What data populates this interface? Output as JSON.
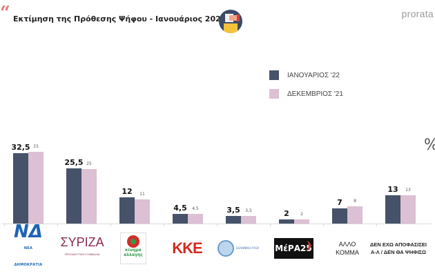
{
  "header": {
    "title": "Εκτίμηση της Πρόθεσης Ψήφου - Ιανουάριος 2022",
    "brand": "prorata",
    "icon": "ballot-vote-icon",
    "quote_mark": "“"
  },
  "legend": {
    "items": [
      {
        "label": "ΙΑΝΟΥΑΡΙΟΣ '22",
        "color": "#455269"
      },
      {
        "label": "ΔΕΚΕΜΒΡΙΟΣ '21",
        "color": "#dcc0d3"
      }
    ]
  },
  "unit_symbol": "%",
  "parties": [
    {
      "logo_text": "ΝΔ",
      "logo_sub": "ΝΕΑ ΔΗΜΟΚΡΑΤΙΑ",
      "jan_label": "32,5",
      "dec_label": "33"
    },
    {
      "logo_text": "ΣΥΡΙΖΑ",
      "logo_sub": "ΠΡΟΟΔΕΥΤΙΚΗ ΣΥΜΜΑΧΙΑ",
      "jan_label": "25,5",
      "dec_label": "25"
    },
    {
      "logo_text": "κίνημα αλλαγής",
      "logo_sub": "",
      "jan_label": "12",
      "dec_label": "11"
    },
    {
      "logo_text": "ΚΚΕ",
      "logo_sub": "",
      "jan_label": "4,5",
      "dec_label": "4,5"
    },
    {
      "logo_text": "ΕΛΛΗΝΙΚΗ ΛΥΣΗ",
      "logo_sub": "",
      "jan_label": "3,5",
      "dec_label": "3,5"
    },
    {
      "logo_text": "ΜέΡΑ25",
      "logo_sub": "",
      "jan_label": "2",
      "dec_label": "2"
    },
    {
      "logo_text": "ΑΛΛΟ ΚΟΜΜΑ",
      "logo_sub": "",
      "jan_label": "7",
      "dec_label": "8"
    },
    {
      "logo_text": "ΔΕΝ ΕΧΩ ΑΠΟΦΑΣΙΣΕΙ Α-Λ / ΔΕΝ ΘΑ ΨΗΦΙΣΩ",
      "logo_sub": "",
      "jan_label": "13",
      "dec_label": "13"
    }
  ],
  "other_label_1": "ΑΛΛΟ",
  "other_label_2": "ΚΟΜΜΑ",
  "undecided_line1": "ΔΕΝ ΕΧΩ ΑΠΟΦΑΣΙΣΕΙ",
  "undecided_line2": "Α-Λ / ΔΕΝ ΘΑ ΨΗΦΙΣΩ",
  "chart_data": {
    "type": "bar",
    "title": "Εκτίμηση της Πρόθεσης Ψήφου - Ιανουάριος 2022",
    "categories": [
      "ΝΔ",
      "ΣΥΡΙΖΑ",
      "ΚΙΝΑΛ",
      "ΚΚΕ",
      "Ελληνική Λύση",
      "ΜέΡΑ25",
      "Άλλο κόμμα",
      "Δεν έχω αποφασίσει Α-Λ / Δεν θα ψηφίσω"
    ],
    "series": [
      {
        "name": "ΙΑΝΟΥΑΡΙΟΣ '22",
        "color": "#455269",
        "values": [
          32.5,
          25.5,
          12,
          4.5,
          3.5,
          2,
          7,
          13
        ]
      },
      {
        "name": "ΔΕΚΕΜΒΡΙΟΣ '21",
        "color": "#dcc0d3",
        "values": [
          33,
          25,
          11,
          4.5,
          3.5,
          2,
          8,
          13
        ]
      }
    ],
    "xlabel": "",
    "ylabel": "%",
    "ylim": [
      0,
      35
    ],
    "grid": false,
    "legend_position": "top-right"
  }
}
